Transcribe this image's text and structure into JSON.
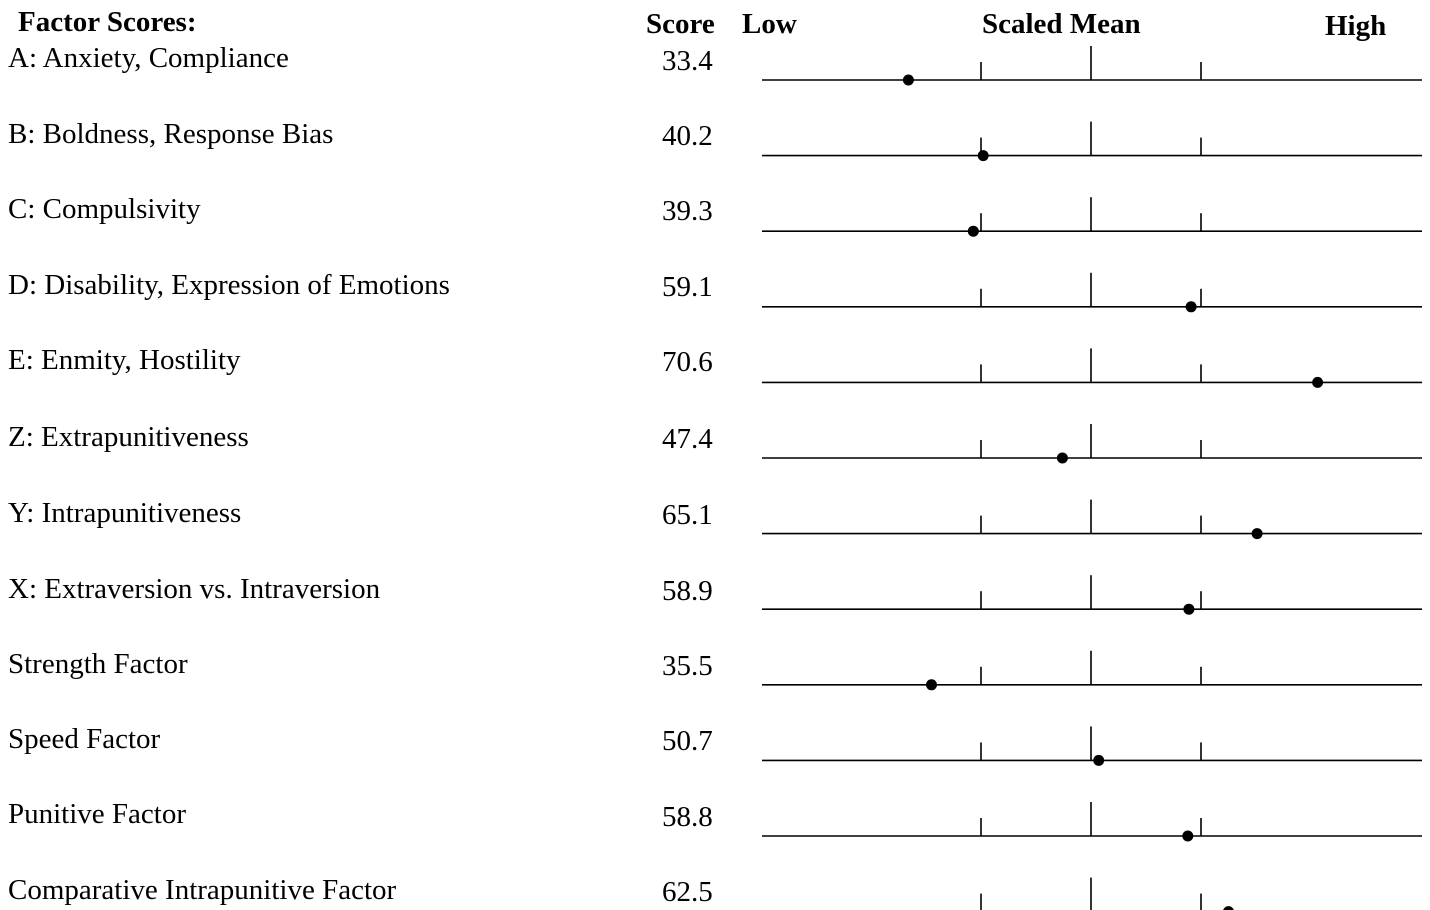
{
  "header": {
    "title": "Factor Scores:",
    "score": "Score",
    "low": "Low",
    "scaled_mean": "Scaled Mean",
    "high": "High"
  },
  "factors": [
    {
      "label": "A:  Anxiety, Compliance",
      "score": "33.4",
      "value": 33.4
    },
    {
      "label": "B:  Boldness, Response Bias",
      "score": "40.2",
      "value": 40.2
    },
    {
      "label": "C:  Compulsivity",
      "score": "39.3",
      "value": 39.3
    },
    {
      "label": "D:  Disability, Expression of Emotions",
      "score": "59.1",
      "value": 59.1
    },
    {
      "label": "E:  Enmity, Hostility",
      "score": "70.6",
      "value": 70.6
    },
    {
      "label": "Z:  Extrapunitiveness",
      "score": "47.4",
      "value": 47.4
    },
    {
      "label": "Y:  Intrapunitiveness",
      "score": "65.1",
      "value": 65.1
    },
    {
      "label": "X:  Extraversion vs. Intraversion",
      "score": "58.9",
      "value": 58.9
    },
    {
      "label": "Strength Factor",
      "score": "35.5",
      "value": 35.5
    },
    {
      "label": "Speed Factor",
      "score": "50.7",
      "value": 50.7
    },
    {
      "label": "Punitive Factor",
      "score": "58.8",
      "value": 58.8
    },
    {
      "label": "Comparative Intrapunitive Factor",
      "score": "62.5",
      "value": 62.5
    }
  ],
  "scale": {
    "mean": 50,
    "sd": 10,
    "min": 20,
    "max": 80
  }
}
